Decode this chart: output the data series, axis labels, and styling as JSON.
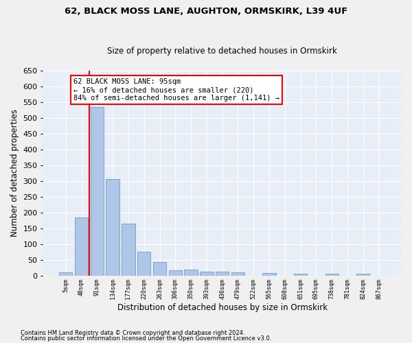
{
  "title1": "62, BLACK MOSS LANE, AUGHTON, ORMSKIRK, L39 4UF",
  "title2": "Size of property relative to detached houses in Ormskirk",
  "xlabel": "Distribution of detached houses by size in Ormskirk",
  "ylabel": "Number of detached properties",
  "footer1": "Contains HM Land Registry data © Crown copyright and database right 2024.",
  "footer2": "Contains public sector information licensed under the Open Government Licence v3.0.",
  "annotation_line1": "62 BLACK MOSS LANE: 95sqm",
  "annotation_line2": "← 16% of detached houses are smaller (220)",
  "annotation_line3": "84% of semi-detached houses are larger (1,141) →",
  "bar_color": "#aec6e8",
  "bar_edge_color": "#5b8db8",
  "property_line_color": "red",
  "background_color": "#e8eef8",
  "grid_color": "#ffffff",
  "fig_background": "#f0f0f0",
  "categories": [
    "5sqm",
    "48sqm",
    "91sqm",
    "134sqm",
    "177sqm",
    "220sqm",
    "263sqm",
    "306sqm",
    "350sqm",
    "393sqm",
    "436sqm",
    "479sqm",
    "522sqm",
    "565sqm",
    "608sqm",
    "651sqm",
    "695sqm",
    "738sqm",
    "781sqm",
    "824sqm",
    "867sqm"
  ],
  "values": [
    10,
    185,
    535,
    305,
    165,
    75,
    42,
    17,
    19,
    13,
    12,
    10,
    0,
    8,
    0,
    5,
    0,
    5,
    0,
    5,
    0
  ],
  "ylim": [
    0,
    650
  ],
  "yticks": [
    0,
    50,
    100,
    150,
    200,
    250,
    300,
    350,
    400,
    450,
    500,
    550,
    600,
    650
  ],
  "vline_x": 1.5
}
